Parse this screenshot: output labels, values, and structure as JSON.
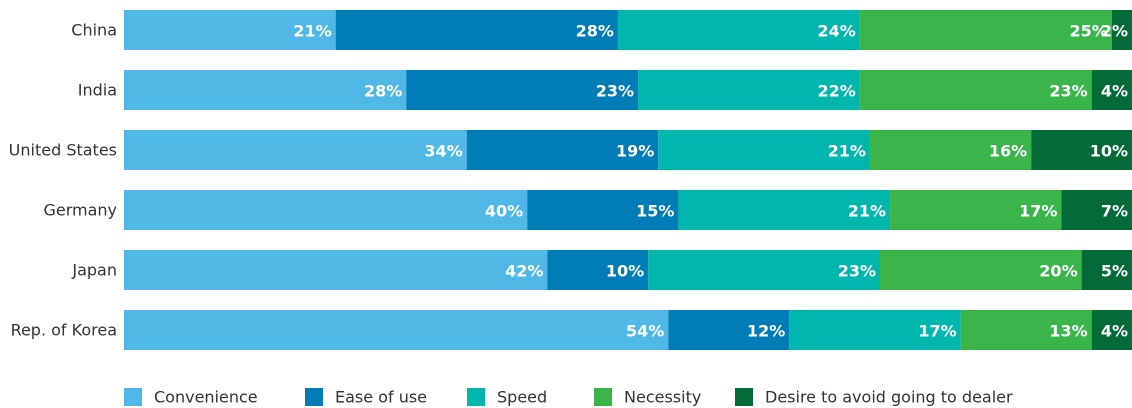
{
  "chart_data": {
    "type": "stacked-bar-horizontal",
    "categories": [
      "China",
      "India",
      "United States",
      "Germany",
      "Japan",
      "Rep. of Korea"
    ],
    "series": [
      {
        "name": "Convenience",
        "color": "#50b8e7",
        "values": [
          21,
          28,
          34,
          40,
          42,
          54
        ],
        "value_labels": [
          "21%",
          "28%",
          "34%",
          "40%",
          "42%",
          "54%"
        ]
      },
      {
        "name": "Ease of use",
        "color": "#007cb7",
        "values": [
          28,
          23,
          19,
          15,
          10,
          12
        ],
        "value_labels": [
          "28%",
          "23%",
          "19%",
          "15%",
          "10%",
          "12%"
        ]
      },
      {
        "name": "Speed",
        "color": "#00b6ad",
        "values": [
          24,
          22,
          21,
          21,
          23,
          17
        ],
        "value_labels": [
          "24%",
          "22%",
          "21%",
          "21%",
          "23%",
          "17%"
        ]
      },
      {
        "name": "Necessity",
        "color": "#39b54a",
        "values": [
          25,
          23,
          16,
          17,
          20,
          13
        ],
        "value_labels": [
          "25%",
          "23%",
          "16%",
          "17%",
          "20%",
          "13%"
        ]
      },
      {
        "name": "Desire to avoid going to dealer",
        "color": "#046a38",
        "values": [
          2,
          4,
          10,
          7,
          5,
          4
        ],
        "value_labels": [
          "2%",
          "4%",
          "10%",
          "7%",
          "5%",
          "4%"
        ]
      }
    ]
  }
}
